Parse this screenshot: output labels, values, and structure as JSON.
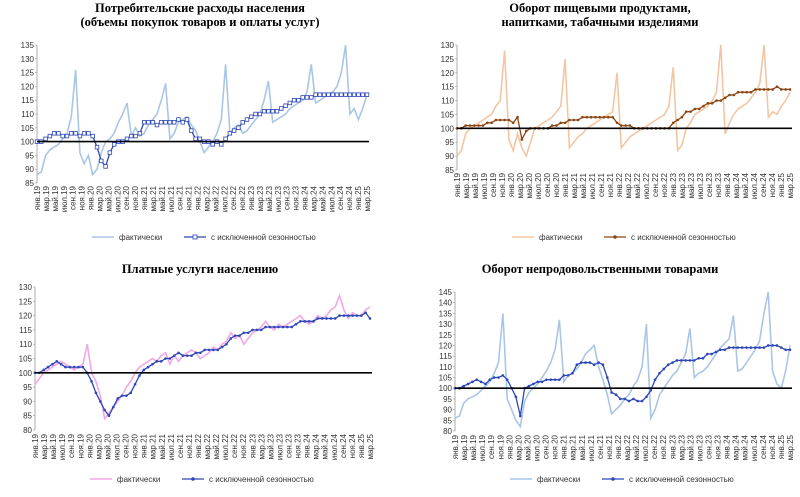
{
  "charts": [
    {
      "title_line1": "Потребительские расходы населения",
      "title_line2": "(объемы покупок товаров и оплаты услуг)"
    },
    {
      "title_line1": "Оборот пищевыми продуктами,",
      "title_line2": "напитками, табачными изделиями"
    },
    {
      "title_line1": "Платные услуги населению",
      "title_line2": ""
    },
    {
      "title_line1": "Оборот непродовольственными товарами",
      "title_line2": ""
    }
  ],
  "chart_data": [
    {
      "type": "line",
      "title": "Потребительские расходы населения (объемы покупок товаров и оплаты услуг)",
      "ylim": [
        85,
        135
      ],
      "yticks": [
        85,
        90,
        95,
        100,
        105,
        110,
        115,
        120,
        125,
        130,
        135
      ],
      "baseline": 100,
      "x_labels": [
        "янв.19",
        "мар.19",
        "май.19",
        "июл.19",
        "сен.19",
        "ноя.19",
        "янв.20",
        "мар.20",
        "май.20",
        "июл.20",
        "сен.20",
        "ноя.20",
        "янв.21",
        "мар.21",
        "май.21",
        "июл.21",
        "сен.21",
        "ноя.21",
        "янв.22",
        "мар.22",
        "май.22",
        "июл.22",
        "сен.22",
        "ноя.22",
        "янв.23",
        "мар.23",
        "май.23",
        "июл.23",
        "сен.23",
        "ноя.23",
        "янв.24",
        "мар.24",
        "май.24",
        "июл.24",
        "сен.24",
        "ноя.24",
        "янв.25",
        "мар.25"
      ],
      "legend_position": "bottom",
      "series": [
        {
          "name": "фактически",
          "color": "#a9c6e6",
          "marker": "none",
          "values": [
            88,
            89,
            95,
            97,
            98,
            99,
            101,
            103,
            109,
            126,
            96,
            92,
            95,
            88,
            90,
            96,
            100,
            101,
            103,
            107,
            110,
            114,
            102,
            105,
            102,
            103,
            106,
            108,
            110,
            115,
            121,
            101,
            103,
            107,
            108,
            109,
            106,
            104,
            100,
            96,
            98,
            100,
            103,
            108,
            128,
            103,
            105,
            106,
            103,
            104,
            106,
            108,
            110,
            115,
            122,
            107,
            108,
            109,
            110,
            112,
            113,
            114,
            115,
            118,
            128,
            114,
            115,
            116,
            117,
            118,
            120,
            125,
            135,
            110,
            112,
            108,
            112,
            117
          ]
        },
        {
          "name": "с исключенной сезонностью",
          "color": "#2d46b8",
          "marker": "square",
          "values": [
            100,
            100,
            101,
            102,
            103,
            103,
            102,
            102,
            103,
            103,
            102,
            103,
            103,
            102,
            98,
            93,
            91,
            96,
            99,
            100,
            100,
            101,
            102,
            102,
            103,
            107,
            107,
            107,
            106,
            107,
            107,
            107,
            107,
            108,
            107,
            108,
            104,
            101,
            101,
            100,
            100,
            99,
            100,
            99,
            101,
            103,
            104,
            105,
            107,
            108,
            109,
            110,
            110,
            111,
            111,
            111,
            111,
            112,
            113,
            114,
            115,
            115,
            116,
            116,
            116,
            117,
            117,
            117,
            117,
            117,
            117,
            117,
            117,
            117,
            117,
            117,
            117,
            117
          ]
        }
      ]
    },
    {
      "type": "line",
      "title": "Оборот пищевыми продуктами, напитками, табачными изделиями",
      "ylim": [
        85,
        130
      ],
      "yticks": [
        85,
        90,
        95,
        100,
        105,
        110,
        115,
        120,
        125,
        130
      ],
      "baseline": 100,
      "x_labels": [
        "янв.19",
        "мар.19",
        "май.19",
        "июл.19",
        "сен.19",
        "ноя.19",
        "янв.20",
        "мар.20",
        "май.20",
        "июл.20",
        "сен.20",
        "ноя.20",
        "янв.21",
        "мар.21",
        "май.21",
        "июл.21",
        "сен.21",
        "ноя.21",
        "янв.22",
        "мар.22",
        "май.22",
        "июл.22",
        "сен.22",
        "ноя.22",
        "янв.23",
        "мар.23",
        "май.23",
        "июл.23",
        "сен.23",
        "ноя.23",
        "янв.24",
        "мар.24",
        "май.24",
        "июл.24",
        "сен.24",
        "ноя.24",
        "янв.25",
        "мар.25"
      ],
      "legend_position": "bottom",
      "series": [
        {
          "name": "фактически",
          "color": "#f3c6a3",
          "marker": "none",
          "values": [
            90,
            92,
            98,
            100,
            101,
            102,
            103,
            104,
            105,
            108,
            110,
            128,
            96,
            92,
            98,
            93,
            90,
            95,
            100,
            101,
            102,
            103,
            104,
            106,
            108,
            125,
            93,
            95,
            97,
            98,
            100,
            101,
            102,
            103,
            104,
            105,
            106,
            120,
            93,
            95,
            97,
            98,
            99,
            100,
            101,
            102,
            103,
            104,
            105,
            108,
            122,
            92,
            94,
            100,
            102,
            105,
            106,
            107,
            108,
            110,
            113,
            130,
            98,
            102,
            105,
            107,
            108,
            109,
            111,
            113,
            116,
            130,
            104,
            106,
            105,
            108,
            110,
            113
          ]
        },
        {
          "name": "с исключенной сезонностью",
          "color": "#8b4513",
          "marker": "dot",
          "values": [
            100,
            100,
            101,
            101,
            101,
            101,
            101,
            102,
            102,
            103,
            103,
            103,
            103,
            102,
            104,
            96,
            99,
            100,
            100,
            100,
            100,
            100,
            101,
            101,
            102,
            102,
            103,
            103,
            103,
            104,
            104,
            104,
            104,
            104,
            104,
            104,
            104,
            102,
            101,
            101,
            101,
            100,
            100,
            100,
            100,
            100,
            100,
            100,
            100,
            100,
            102,
            103,
            104,
            106,
            106,
            107,
            107,
            108,
            109,
            109,
            110,
            110,
            111,
            112,
            112,
            113,
            113,
            113,
            113,
            114,
            114,
            114,
            114,
            114,
            115,
            114,
            114,
            114
          ]
        }
      ]
    },
    {
      "type": "line",
      "title": "Платные услуги населению",
      "ylim": [
        80,
        130
      ],
      "yticks": [
        80,
        85,
        90,
        95,
        100,
        105,
        110,
        115,
        120,
        125,
        130
      ],
      "baseline": 100,
      "x_labels": [
        "янв.19",
        "мар.19",
        "май.19",
        "июл.19",
        "сен.19",
        "ноя.19",
        "янв.20",
        "мар.20",
        "май.20",
        "июл.20",
        "сен.20",
        "ноя.20",
        "янв.21",
        "мар.21",
        "май.21",
        "июл.21",
        "сен.21",
        "ноя.21",
        "янв.22",
        "мар.22",
        "май.22",
        "июл.22",
        "сен.22",
        "ноя.22",
        "янв.23",
        "мар.23",
        "май.23",
        "июл.23",
        "сен.23",
        "ноя.23",
        "янв.24",
        "мар.24",
        "май.24",
        "июл.24",
        "сен.24",
        "ноя.24",
        "янв.25",
        "мар.25"
      ],
      "legend_position": "bottom",
      "series": [
        {
          "name": "фактически",
          "color": "#f2a8e6",
          "marker": "none",
          "values": [
            96,
            98,
            100,
            101,
            102,
            103,
            104,
            103,
            102,
            101,
            102,
            103,
            110,
            100,
            97,
            92,
            84,
            86,
            88,
            90,
            92,
            95,
            97,
            100,
            102,
            103,
            104,
            105,
            104,
            106,
            107,
            103,
            106,
            104,
            106,
            107,
            108,
            107,
            105,
            106,
            107,
            109,
            108,
            110,
            111,
            114,
            112,
            113,
            110,
            112,
            114,
            115,
            116,
            118,
            116,
            115,
            117,
            116,
            117,
            118,
            119,
            120,
            118,
            117,
            118,
            120,
            119,
            120,
            122,
            123,
            127,
            122,
            119,
            121,
            120,
            120,
            122,
            123
          ]
        },
        {
          "name": "с исключенной сезонностью",
          "color": "#2d46b8",
          "marker": "dot",
          "values": [
            100,
            100,
            101,
            102,
            103,
            104,
            103,
            102,
            102,
            102,
            102,
            102,
            100,
            97,
            93,
            90,
            87,
            85,
            88,
            91,
            92,
            92,
            93,
            96,
            99,
            101,
            102,
            103,
            104,
            104,
            105,
            105,
            106,
            107,
            106,
            106,
            106,
            107,
            107,
            108,
            108,
            108,
            108,
            109,
            110,
            112,
            113,
            113,
            114,
            114,
            115,
            115,
            115,
            116,
            116,
            116,
            116,
            116,
            116,
            116,
            117,
            118,
            118,
            118,
            118,
            119,
            119,
            119,
            119,
            119,
            120,
            120,
            120,
            120,
            120,
            120,
            121,
            119
          ]
        }
      ]
    },
    {
      "type": "line",
      "title": "Оборот непродовольственными товарами",
      "ylim": [
        80,
        145
      ],
      "yticks": [
        80,
        85,
        90,
        95,
        100,
        105,
        110,
        115,
        120,
        125,
        130,
        135,
        140,
        145
      ],
      "baseline": 100,
      "x_labels": [
        "янв.19",
        "мар.19",
        "май.19",
        "июл.19",
        "сен.19",
        "ноя.19",
        "янв.20",
        "мар.20",
        "май.20",
        "июл.20",
        "сен.20",
        "ноя.20",
        "янв.21",
        "мар.21",
        "май.21",
        "июл.21",
        "сен.21",
        "ноя.21",
        "янв.22",
        "мар.22",
        "май.22",
        "июл.22",
        "сен.22",
        "ноя.22",
        "янв.23",
        "мар.23",
        "май.23",
        "июл.23",
        "сен.23",
        "ноя.23",
        "янв.24",
        "мар.24",
        "май.24",
        "июл.24",
        "сен.24",
        "ноя.24",
        "янв.25",
        "мар.25"
      ],
      "legend_position": "bottom",
      "series": [
        {
          "name": "фактически",
          "color": "#a9c6e6",
          "marker": "none",
          "values": [
            86,
            87,
            93,
            95,
            96,
            97,
            99,
            101,
            103,
            107,
            112,
            135,
            95,
            90,
            85,
            82,
            94,
            98,
            100,
            102,
            105,
            108,
            112,
            118,
            132,
            103,
            106,
            107,
            109,
            112,
            116,
            118,
            120,
            110,
            104,
            97,
            88,
            90,
            92,
            95,
            97,
            101,
            104,
            110,
            130,
            86,
            90,
            97,
            100,
            103,
            106,
            108,
            112,
            116,
            128,
            105,
            107,
            108,
            110,
            113,
            116,
            119,
            121,
            123,
            134,
            108,
            109,
            112,
            115,
            118,
            122,
            135,
            145,
            108,
            102,
            100,
            108,
            120
          ]
        },
        {
          "name": "с исключенной сезонностью",
          "color": "#2d46b8",
          "marker": "dot",
          "values": [
            100,
            100,
            101,
            102,
            103,
            104,
            103,
            102,
            104,
            105,
            105,
            106,
            104,
            100,
            96,
            87,
            100,
            101,
            102,
            103,
            103,
            104,
            104,
            104,
            104,
            106,
            106,
            107,
            111,
            112,
            112,
            112,
            111,
            112,
            111,
            105,
            98,
            97,
            95,
            95,
            94,
            95,
            94,
            94,
            96,
            99,
            104,
            107,
            109,
            111,
            112,
            113,
            113,
            113,
            113,
            113,
            114,
            114,
            116,
            116,
            117,
            118,
            118,
            119,
            119,
            119,
            119,
            119,
            119,
            119,
            119,
            119,
            120,
            120,
            120,
            119,
            118,
            118
          ]
        }
      ]
    }
  ]
}
